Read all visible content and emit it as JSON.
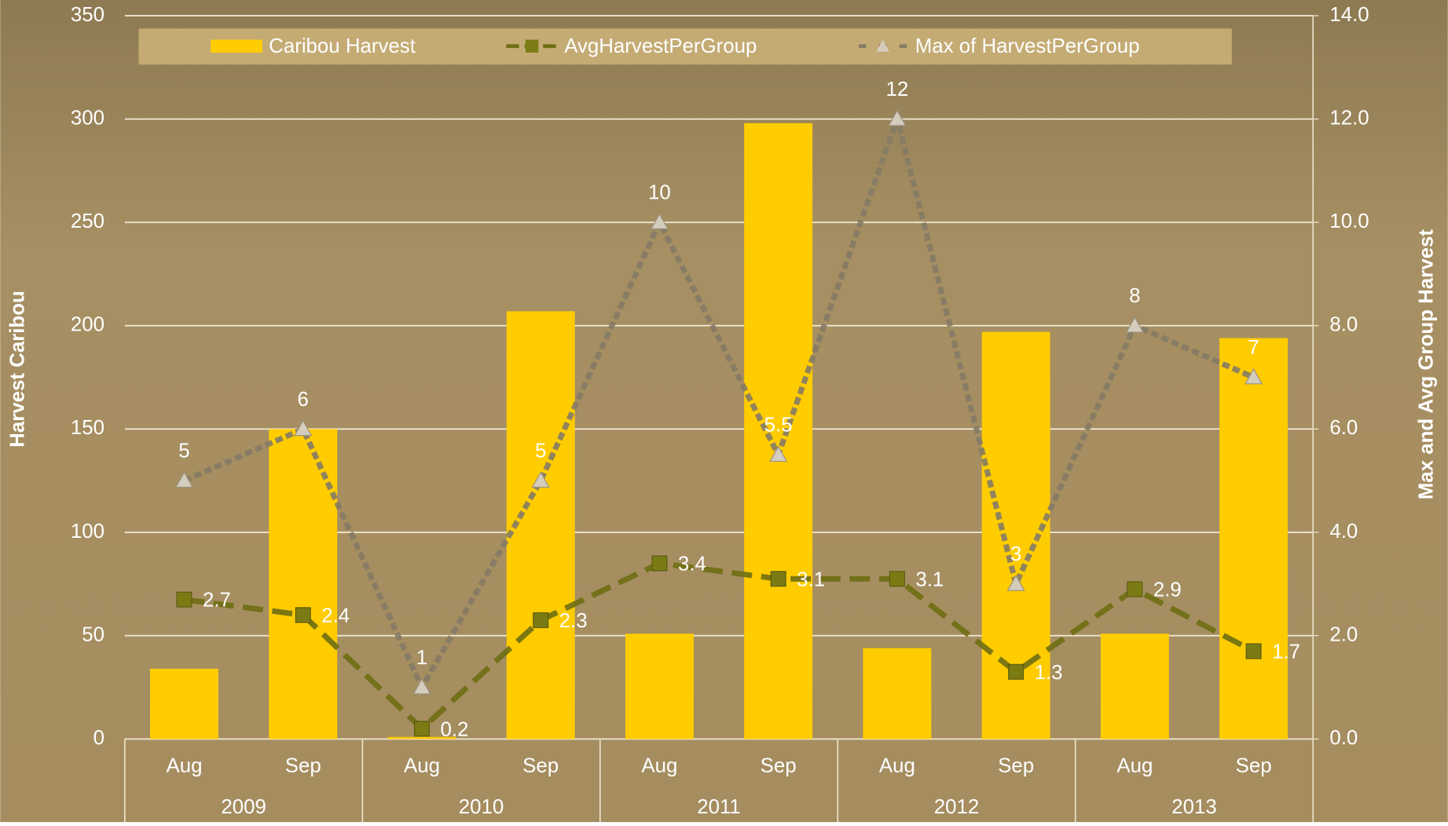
{
  "chart_data": {
    "type": "bar",
    "y_label": "Harvest Caribou",
    "y2_label": "Max and Avg Group Harvest",
    "categories": [
      "Aug",
      "Sep",
      "Aug",
      "Sep",
      "Aug",
      "Sep",
      "Aug",
      "Sep",
      "Aug",
      "Sep"
    ],
    "category_groups": [
      "2009",
      "2010",
      "2011",
      "2012",
      "2013"
    ],
    "ylim": [
      0,
      350
    ],
    "yticks": [
      0,
      50,
      100,
      150,
      200,
      250,
      300,
      350
    ],
    "y2lim": [
      0,
      14
    ],
    "y2ticks": [
      {
        "value": 0,
        "label": "0.0"
      },
      {
        "value": 2,
        "label": "2.0"
      },
      {
        "value": 4,
        "label": "4.0"
      },
      {
        "value": 6,
        "label": "6.0"
      },
      {
        "value": 8,
        "label": "8.0"
      },
      {
        "value": 10,
        "label": "10.0"
      },
      {
        "value": 12,
        "label": "12.0"
      },
      {
        "value": 14,
        "label": "14.0"
      }
    ],
    "grid": true,
    "legend": "top",
    "series": [
      {
        "name": "Caribou Harvest",
        "type": "bar",
        "color": "#ffcc00",
        "values": [
          34,
          150,
          1,
          207,
          51,
          298,
          44,
          197,
          51,
          194
        ]
      },
      {
        "name": "AvgHarvestPerGroup",
        "type": "line",
        "axis": "y2",
        "color": "#6e6e12",
        "marker": "square",
        "values": [
          2.7,
          2.4,
          0.2,
          2.3,
          3.4,
          3.1,
          3.1,
          1.3,
          2.9,
          1.7
        ]
      },
      {
        "name": "Max of HarvestPerGroup",
        "type": "line",
        "axis": "y2",
        "color": "#857b65",
        "marker": "triangle",
        "values": [
          5,
          6,
          1,
          5,
          10,
          5.5,
          12,
          3,
          8,
          7
        ]
      }
    ]
  }
}
